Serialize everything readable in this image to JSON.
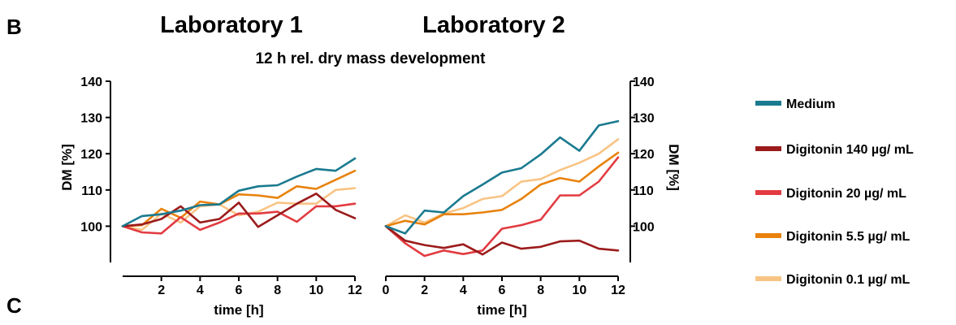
{
  "panel_labels": {
    "top": "B",
    "bottom": "C"
  },
  "chart_data": [
    {
      "type": "line",
      "title": "Laboratory 1",
      "subtitle": "12 h rel. dry mass development",
      "xlabel": "time [h]",
      "ylabel": "DM [%]",
      "xlim": [
        0,
        12
      ],
      "ylim": [
        90,
        140
      ],
      "xticks": [
        "2",
        "4",
        "6",
        "8",
        "10",
        "12"
      ],
      "yticks": [
        "100",
        "110",
        "120",
        "130",
        "140"
      ],
      "grid": false,
      "x": [
        0,
        1,
        2,
        3,
        4,
        5,
        6,
        7,
        8,
        9,
        10,
        11,
        12
      ],
      "series": [
        {
          "name": "Medium",
          "color": "#1a7a8f",
          "values": [
            100,
            102.8,
            103.3,
            104.3,
            105.8,
            106.0,
            109.8,
            111.0,
            111.3,
            113.7,
            115.8,
            115.3,
            118.7
          ]
        },
        {
          "name": "Digitonin 140 µg/ mL",
          "color": "#9b1b1b",
          "values": [
            100,
            100.5,
            102.0,
            105.5,
            101.0,
            102.0,
            106.5,
            99.8,
            103.0,
            106.2,
            109.0,
            104.5,
            102.2
          ]
        },
        {
          "name": "Digitonin 20 µg/ mL",
          "color": "#e23b41",
          "values": [
            100,
            98.3,
            98.0,
            102.5,
            99.0,
            101.0,
            103.5,
            103.5,
            104.0,
            101.2,
            105.5,
            105.5,
            106.2
          ]
        },
        {
          "name": "Digitonin 5.5 µg/ mL",
          "color": "#e8820c",
          "values": [
            100,
            100.3,
            104.8,
            102.3,
            106.8,
            106.0,
            108.8,
            108.5,
            107.8,
            111.0,
            110.3,
            112.8,
            115.3
          ]
        },
        {
          "name": "Digitonin 0.1 µg/ mL",
          "color": "#f8c484",
          "values": [
            100,
            99.0,
            103.5,
            101.0,
            105.5,
            106.0,
            103.0,
            104.0,
            106.5,
            106.2,
            106.2,
            110.0,
            110.5
          ]
        }
      ]
    },
    {
      "type": "line",
      "title": "Laboratory 2",
      "xlabel": "time [h]",
      "ylabel": "DM [%]",
      "xlim": [
        0,
        12
      ],
      "ylim": [
        90,
        140
      ],
      "xticks": [
        "0",
        "2",
        "4",
        "6",
        "8",
        "10",
        "12"
      ],
      "yticks": [
        "100",
        "110",
        "120",
        "130",
        "140"
      ],
      "grid": false,
      "x": [
        0,
        1,
        2,
        3,
        4,
        5,
        6,
        7,
        8,
        9,
        10,
        11,
        12
      ],
      "series": [
        {
          "name": "Medium",
          "color": "#1a7a8f",
          "values": [
            100,
            98.0,
            104.3,
            103.8,
            108.3,
            111.5,
            114.8,
            116.0,
            119.8,
            124.5,
            120.8,
            127.8,
            129.0
          ]
        },
        {
          "name": "Digitonin 140 µg/ mL",
          "color": "#9b1b1b",
          "values": [
            100,
            96.0,
            94.8,
            94.0,
            95.0,
            92.2,
            95.5,
            93.8,
            94.3,
            95.8,
            96.0,
            93.8,
            93.3
          ]
        },
        {
          "name": "Digitonin 20 µg/ mL",
          "color": "#e23b41",
          "values": [
            100,
            95.3,
            91.8,
            93.3,
            92.3,
            93.3,
            99.3,
            100.3,
            101.8,
            108.5,
            108.5,
            112.3,
            119.0
          ]
        },
        {
          "name": "Digitonin 5.5 µg/ mL",
          "color": "#e8820c",
          "values": [
            100,
            101.5,
            100.5,
            103.3,
            103.3,
            103.8,
            104.5,
            107.5,
            111.5,
            113.3,
            112.3,
            116.5,
            120.3
          ]
        },
        {
          "name": "Digitonin 0.1 µg/ mL",
          "color": "#f8c484",
          "values": [
            100,
            103.0,
            101.0,
            103.5,
            105.0,
            107.5,
            108.3,
            112.3,
            113.0,
            115.5,
            117.5,
            120.0,
            124.0
          ]
        }
      ]
    }
  ],
  "legend": {
    "placement": "right",
    "items": [
      {
        "label": "Medium",
        "color": "#1a7a8f"
      },
      {
        "label": "Digitonin 140 µg/ mL",
        "color": "#9b1b1b"
      },
      {
        "label": "Digitonin 20 µg/ mL",
        "color": "#e23b41"
      },
      {
        "label": "Digitonin 5.5 µg/ mL",
        "color": "#e8820c"
      },
      {
        "label": "Digitonin 0.1 µg/ mL",
        "color": "#f8c484"
      }
    ]
  }
}
